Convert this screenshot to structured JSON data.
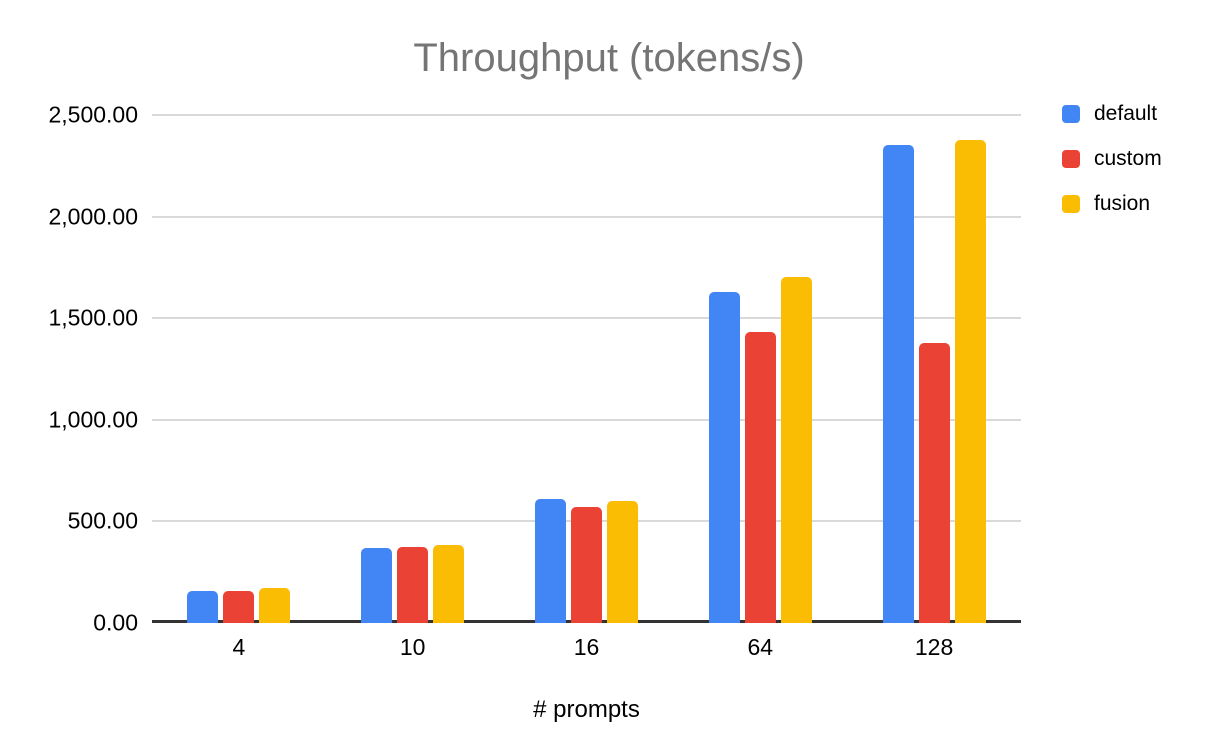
{
  "chart_data": {
    "type": "bar",
    "title": "Throughput (tokens/s)",
    "xlabel": "# prompts",
    "ylabel": "",
    "categories": [
      "4",
      "10",
      "16",
      "64",
      "128"
    ],
    "series": [
      {
        "name": "default",
        "color": "#4285F4",
        "values": [
          160,
          370,
          610,
          1630,
          2350
        ]
      },
      {
        "name": "custom",
        "color": "#EA4335",
        "values": [
          160,
          375,
          570,
          1430,
          1380
        ]
      },
      {
        "name": "fusion",
        "color": "#FBBC04",
        "values": [
          170,
          385,
          600,
          1705,
          2375
        ]
      }
    ],
    "ylim": [
      0,
      2500
    ],
    "yticks": [
      {
        "value": 0,
        "label": "0.00"
      },
      {
        "value": 500,
        "label": "500.00"
      },
      {
        "value": 1000,
        "label": "1,000.00"
      },
      {
        "value": 1500,
        "label": "1,500.00"
      },
      {
        "value": 2000,
        "label": "2,000.00"
      },
      {
        "value": 2500,
        "label": "2,500.00"
      }
    ],
    "grid": true,
    "legend_position": "top-right",
    "colors": {
      "background": "#ffffff",
      "title_text": "#757575",
      "tick_text": "#000000",
      "gridline": "#d9d9d9",
      "axis_line": "#333333"
    }
  }
}
